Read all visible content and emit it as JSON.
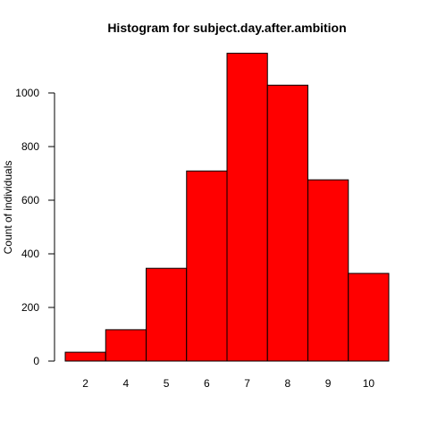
{
  "chart_data": {
    "type": "bar",
    "title": "Histogram for subject.day.after.ambition",
    "xlabel": "",
    "ylabel": "Count of individuals",
    "categories": [
      "2",
      "4",
      "5",
      "6",
      "7",
      "8",
      "9",
      "10"
    ],
    "values": [
      33,
      117,
      346,
      709,
      1148,
      1029,
      676,
      327
    ],
    "ylim": [
      0,
      1150
    ],
    "yticks": [
      0,
      200,
      400,
      600,
      800,
      1000
    ],
    "bar_color": "#ff0000",
    "grid": false
  }
}
